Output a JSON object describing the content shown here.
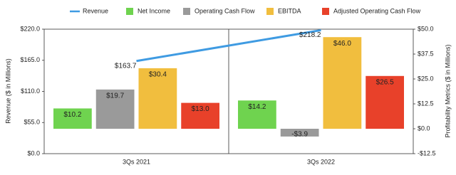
{
  "chart_data": {
    "type": "bar-line",
    "categories": [
      "3Qs 2021",
      "3Qs 2022"
    ],
    "ylabel": "Revenue ($ in Millions)",
    "y2label": "Profitability Metrics ($ in Millions)",
    "ylim": [
      0,
      220
    ],
    "yticks": [
      {
        "value": 0,
        "label": "$0.0"
      },
      {
        "value": 55,
        "label": "$55.0"
      },
      {
        "value": 110,
        "label": "$110.0"
      },
      {
        "value": 165,
        "label": "$165.0"
      },
      {
        "value": 220,
        "label": "$220.0"
      }
    ],
    "y2lim": [
      -12.5,
      50
    ],
    "y2ticks": [
      {
        "value": -12.5,
        "label": "-$12.5"
      },
      {
        "value": 0,
        "label": "$0.0"
      },
      {
        "value": 12.5,
        "label": "$12.5"
      },
      {
        "value": 25,
        "label": "$25.0"
      },
      {
        "value": 37.5,
        "label": "$37.5"
      },
      {
        "value": 50,
        "label": "$50.0"
      }
    ],
    "series": [
      {
        "name": "Revenue",
        "type": "line",
        "color": "#3f9be2",
        "values": [
          163.7,
          218.2
        ],
        "value_labels": [
          "$163.7",
          "$218.2"
        ]
      },
      {
        "name": "Net Income",
        "type": "bar",
        "axis": "y2",
        "color": "#6fd34f",
        "values": [
          10.2,
          14.2
        ],
        "value_labels": [
          "$10.2",
          "$14.2"
        ]
      },
      {
        "name": "Operating Cash Flow",
        "type": "bar",
        "axis": "y2",
        "color": "#9a9a9a",
        "values": [
          19.7,
          -3.9
        ],
        "value_labels": [
          "$19.7",
          "-$3.9"
        ]
      },
      {
        "name": "EBITDA",
        "type": "bar",
        "axis": "y2",
        "color": "#f1be3e",
        "values": [
          30.4,
          46.0
        ],
        "value_labels": [
          "$30.4",
          "$46.0"
        ]
      },
      {
        "name": "Adjusted Operating Cash Flow",
        "type": "bar",
        "axis": "y2",
        "color": "#e8412a",
        "values": [
          13.0,
          26.5
        ],
        "value_labels": [
          "$13.0",
          "$26.5"
        ]
      }
    ],
    "legend": "top"
  }
}
